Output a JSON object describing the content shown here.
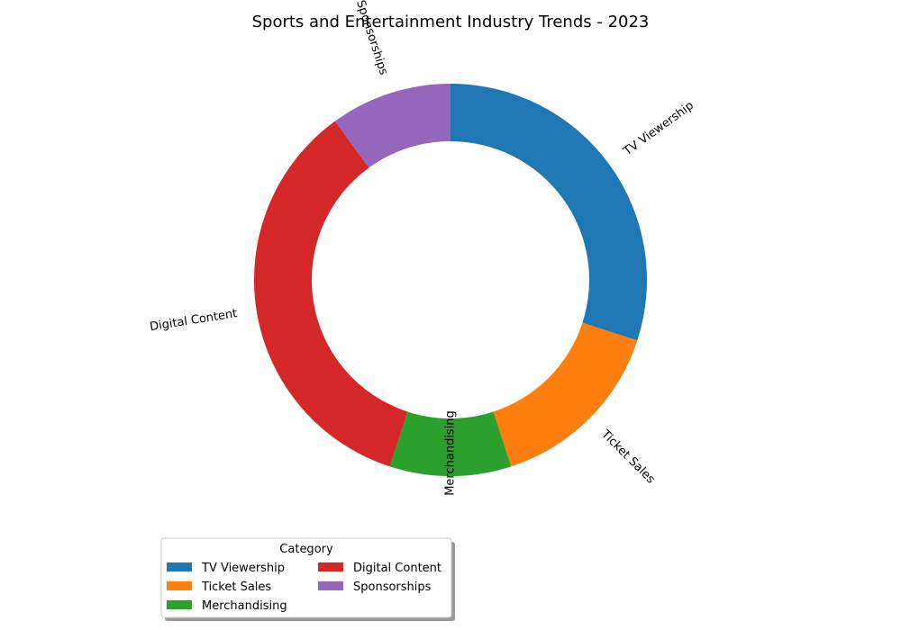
{
  "chart_data": {
    "type": "pie",
    "donut": true,
    "title": "Sports and Entertainment Industry Trends - 2023",
    "categories": [
      "TV Viewership",
      "Ticket Sales",
      "Merchandising",
      "Digital Content",
      "Sponsorships"
    ],
    "values": [
      30,
      15,
      10,
      35,
      10
    ],
    "colors": [
      "#1f77b4",
      "#ff7f0e",
      "#2ca02c",
      "#d62728",
      "#9467bd"
    ],
    "start_angle": "top, clockwise",
    "legend": {
      "title": "Category",
      "placement": "lower-left",
      "columns": 2
    }
  }
}
